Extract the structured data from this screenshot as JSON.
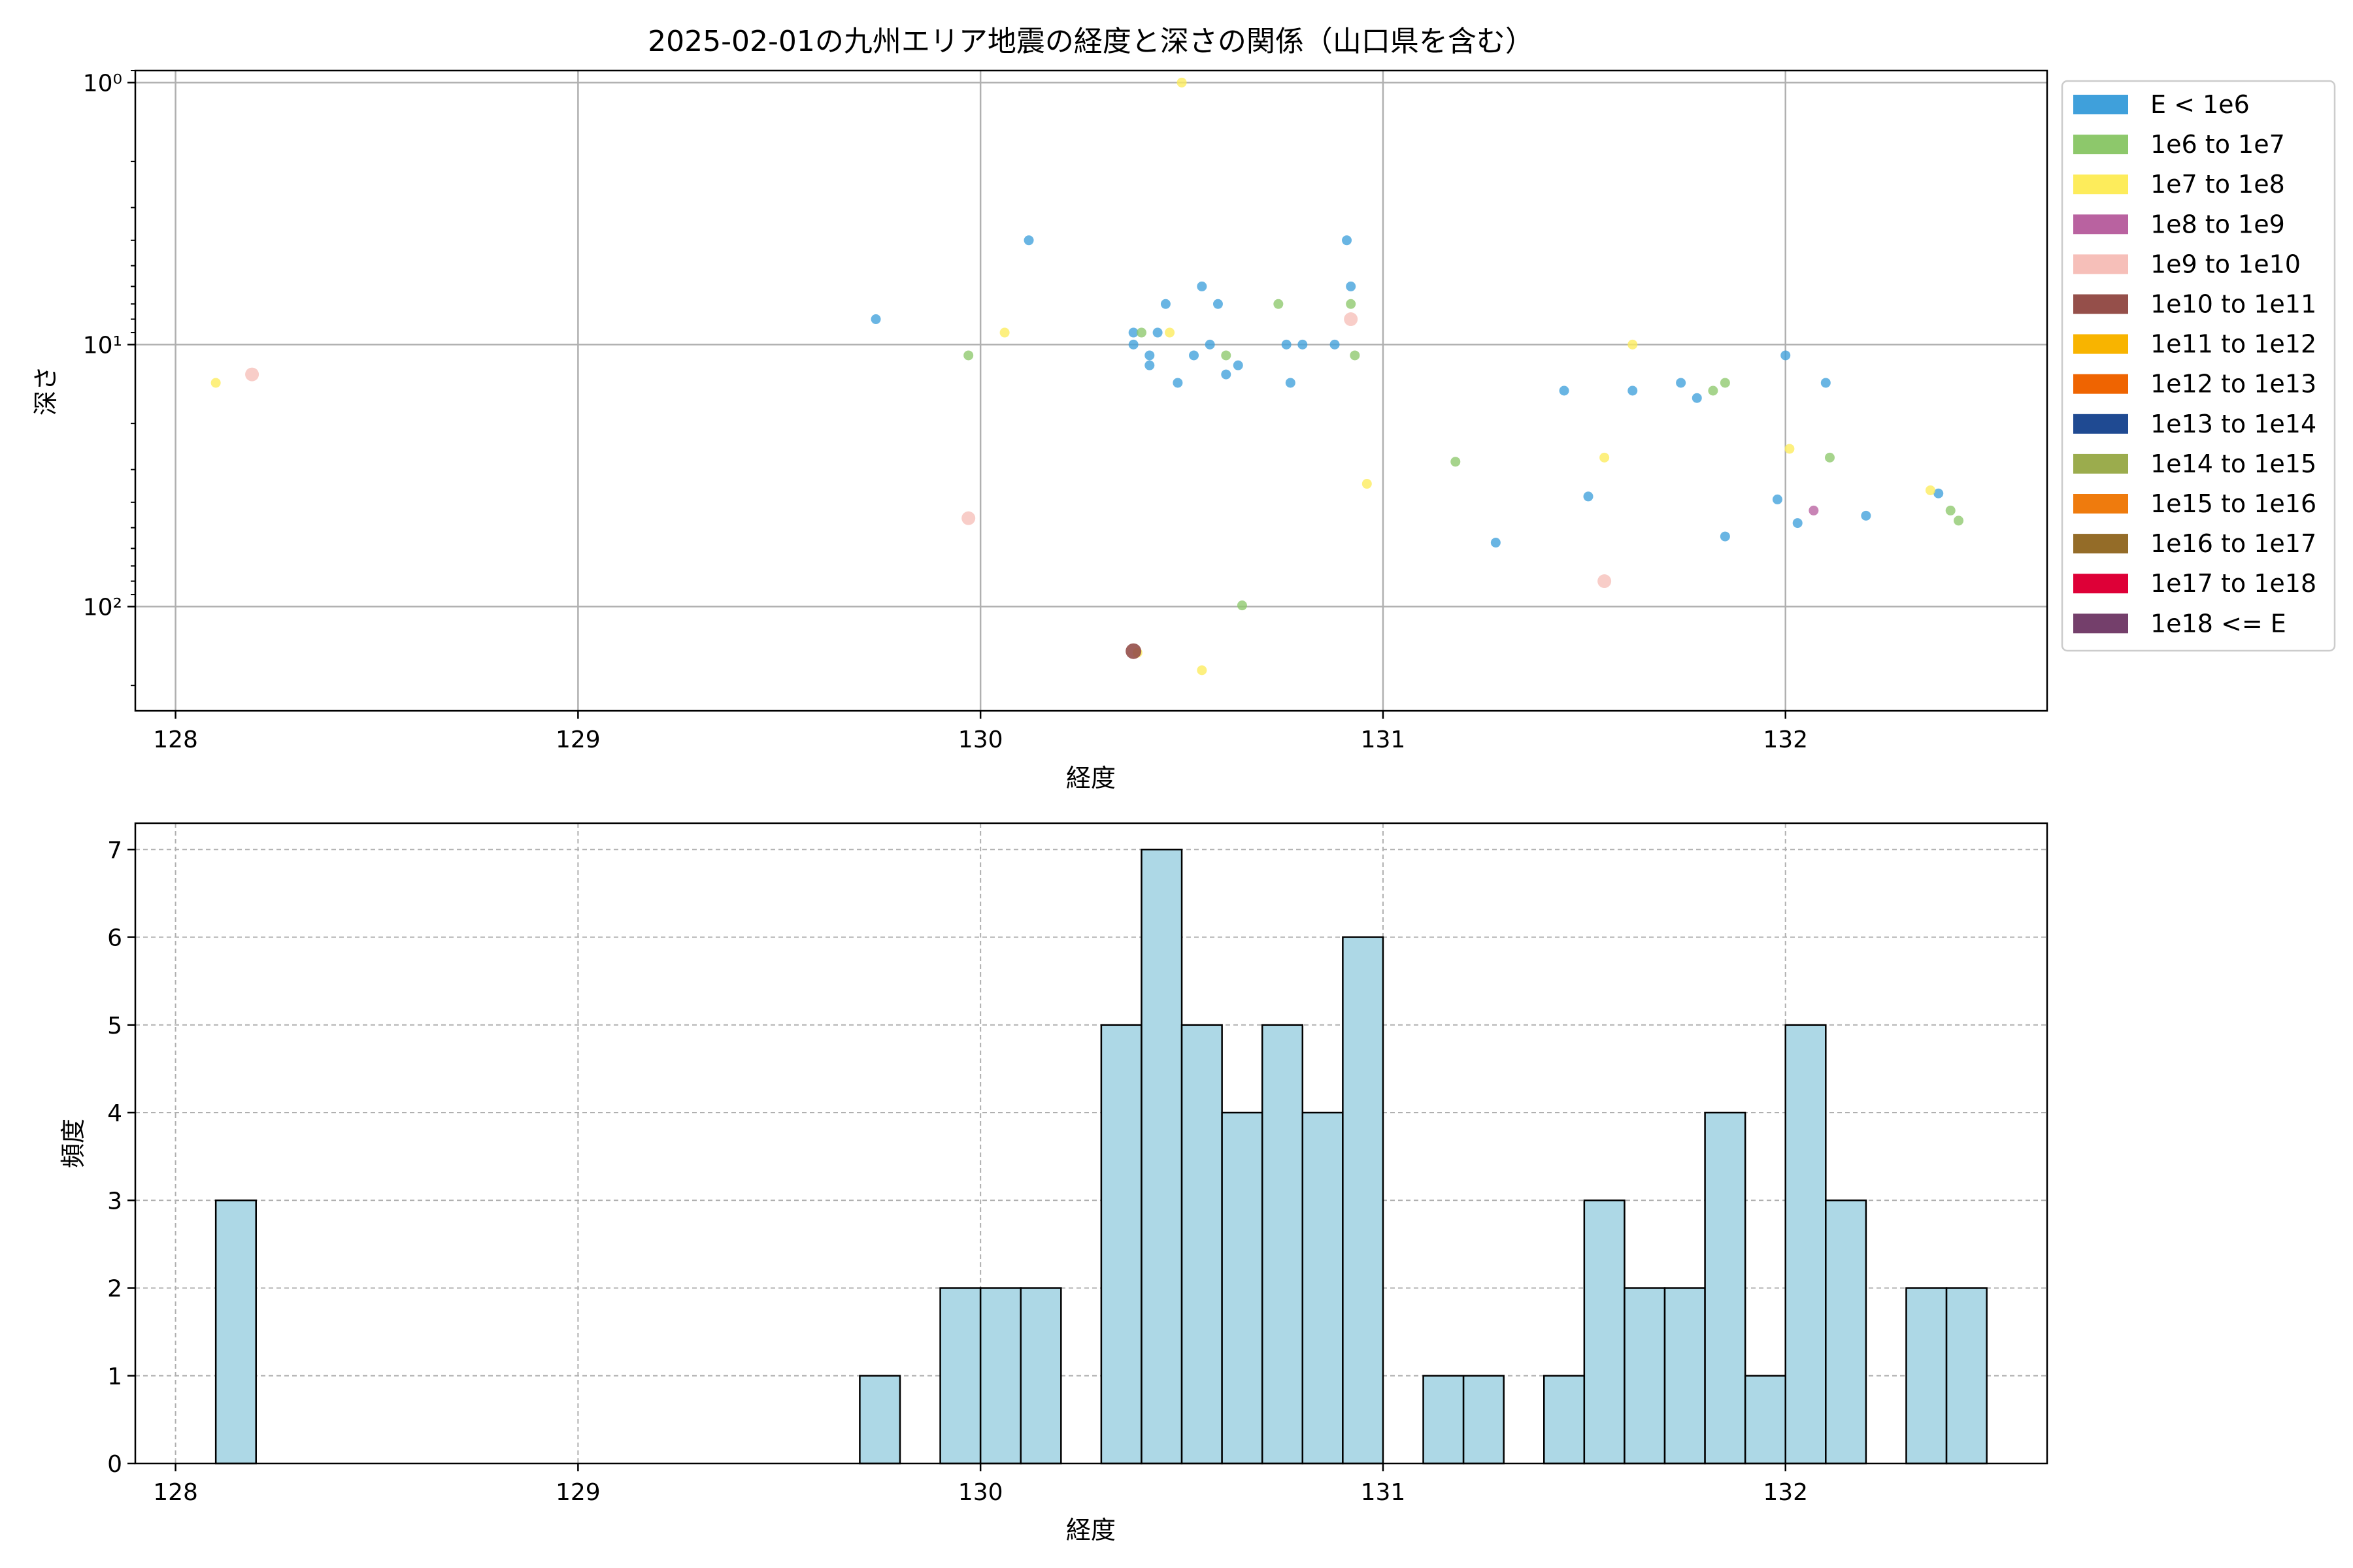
{
  "chart_data": [
    {
      "type": "scatter",
      "title": "2025-02-01の九州エリア地震の経度と深さの関係（山口県を含む）",
      "xlabel": "経度",
      "ylabel": "深さ",
      "xlim": [
        127.9,
        132.65
      ],
      "ylim": [
        250,
        0.9
      ],
      "y_scale": "log-inverted",
      "x_ticks": [
        128,
        129,
        130,
        131,
        132
      ],
      "x_tick_labels": [
        "128",
        "129",
        "130",
        "131",
        "132"
      ],
      "y_ticks": [
        1,
        10,
        100
      ],
      "y_tick_labels": [
        "10⁰",
        "10¹",
        "10²"
      ],
      "grid": true,
      "legend_position": "outside-right",
      "legend": [
        {
          "label": "E < 1e6",
          "color": "#3fa0db"
        },
        {
          "label": "1e6 to 1e7",
          "color": "#8dc86b"
        },
        {
          "label": "1e7 to 1e8",
          "color": "#fdec5b"
        },
        {
          "label": "1e8 to 1e9",
          "color": "#b962a0"
        },
        {
          "label": "1e9 to 1e10",
          "color": "#f6bfb9"
        },
        {
          "label": "1e10 to 1e11",
          "color": "#954f4a"
        },
        {
          "label": "1e11 to 1e12",
          "color": "#f8b400"
        },
        {
          "label": "1e12 to 1e13",
          "color": "#ef6401"
        },
        {
          "label": "1e13 to 1e14",
          "color": "#1f4a92"
        },
        {
          "label": "1e14 to 1e15",
          "color": "#9bac4d"
        },
        {
          "label": "1e15 to 1e16",
          "color": "#ef7b0d"
        },
        {
          "label": "1e16 to 1e17",
          "color": "#946c28"
        },
        {
          "label": "1e17 to 1e18",
          "color": "#de0037"
        },
        {
          "label": "1e18 <= E",
          "color": "#743f6b"
        }
      ],
      "series": [
        {
          "class": 0,
          "points": [
            [
              129.74,
              8
            ],
            [
              130.12,
              4
            ],
            [
              130.38,
              9
            ],
            [
              130.38,
              10
            ],
            [
              130.42,
              11
            ],
            [
              130.42,
              12
            ],
            [
              130.44,
              9
            ],
            [
              130.46,
              7
            ],
            [
              130.49,
              14
            ],
            [
              130.53,
              11
            ],
            [
              130.55,
              6
            ],
            [
              130.57,
              10
            ],
            [
              130.59,
              7
            ],
            [
              130.61,
              13
            ],
            [
              130.64,
              12
            ],
            [
              130.76,
              10
            ],
            [
              130.77,
              14
            ],
            [
              130.8,
              10
            ],
            [
              130.88,
              10
            ],
            [
              130.91,
              4
            ],
            [
              130.92,
              6
            ],
            [
              131.28,
              57
            ],
            [
              131.45,
              15
            ],
            [
              131.51,
              38
            ],
            [
              131.62,
              15
            ],
            [
              131.74,
              14
            ],
            [
              131.78,
              16
            ],
            [
              131.85,
              54
            ],
            [
              131.98,
              39
            ],
            [
              132.0,
              11
            ],
            [
              132.03,
              48
            ],
            [
              132.1,
              14
            ],
            [
              132.2,
              45
            ],
            [
              132.38,
              37
            ]
          ]
        },
        {
          "class": 1,
          "points": [
            [
              129.97,
              11
            ],
            [
              130.4,
              9
            ],
            [
              130.61,
              11
            ],
            [
              130.74,
              7
            ],
            [
              130.92,
              7
            ],
            [
              130.93,
              11
            ],
            [
              131.18,
              28
            ],
            [
              131.82,
              15
            ],
            [
              131.85,
              14
            ],
            [
              132.11,
              27
            ],
            [
              132.41,
              43
            ],
            [
              132.43,
              47
            ],
            [
              130.65,
              99
            ]
          ]
        },
        {
          "class": 2,
          "points": [
            [
              128.1,
              14
            ],
            [
              130.06,
              9
            ],
            [
              130.47,
              9
            ],
            [
              130.5,
              1.0
            ],
            [
              130.96,
              34
            ],
            [
              131.55,
              27
            ],
            [
              131.62,
              10
            ],
            [
              132.01,
              25
            ],
            [
              132.36,
              36
            ],
            [
              130.39,
              150
            ],
            [
              130.55,
              175
            ]
          ]
        },
        {
          "class": 3,
          "points": [
            [
              132.07,
              43
            ]
          ]
        },
        {
          "class": 4,
          "points": [
            [
              128.19,
              13
            ],
            [
              129.97,
              46
            ],
            [
              130.92,
              8
            ],
            [
              131.55,
              80
            ]
          ]
        },
        {
          "class": 5,
          "points": [
            [
              130.38,
              148
            ]
          ]
        }
      ]
    },
    {
      "type": "bar",
      "xlabel": "経度",
      "ylabel": "頻度",
      "xlim": [
        127.9,
        132.65
      ],
      "ylim": [
        0,
        7.3
      ],
      "x_ticks": [
        128,
        129,
        130,
        131,
        132
      ],
      "x_tick_labels": [
        "128",
        "129",
        "130",
        "131",
        "132"
      ],
      "y_ticks": [
        0,
        1,
        2,
        3,
        4,
        5,
        6,
        7
      ],
      "y_tick_labels": [
        "0",
        "1",
        "2",
        "3",
        "4",
        "5",
        "6",
        "7"
      ],
      "grid": true,
      "bar_color": "#add8e6",
      "bins": [
        {
          "start": 128.1,
          "end": 128.2,
          "count": 3
        },
        {
          "start": 129.7,
          "end": 129.8,
          "count": 1
        },
        {
          "start": 129.9,
          "end": 130.0,
          "count": 2
        },
        {
          "start": 130.0,
          "end": 130.1,
          "count": 2
        },
        {
          "start": 130.1,
          "end": 130.2,
          "count": 2
        },
        {
          "start": 130.3,
          "end": 130.4,
          "count": 5
        },
        {
          "start": 130.4,
          "end": 130.5,
          "count": 7
        },
        {
          "start": 130.5,
          "end": 130.6,
          "count": 5
        },
        {
          "start": 130.6,
          "end": 130.7,
          "count": 4
        },
        {
          "start": 130.7,
          "end": 130.8,
          "count": 5
        },
        {
          "start": 130.8,
          "end": 130.9,
          "count": 4
        },
        {
          "start": 130.9,
          "end": 131.0,
          "count": 6
        },
        {
          "start": 131.1,
          "end": 131.2,
          "count": 1
        },
        {
          "start": 131.2,
          "end": 131.3,
          "count": 1
        },
        {
          "start": 131.4,
          "end": 131.5,
          "count": 1
        },
        {
          "start": 131.5,
          "end": 131.6,
          "count": 3
        },
        {
          "start": 131.6,
          "end": 131.7,
          "count": 2
        },
        {
          "start": 131.7,
          "end": 131.8,
          "count": 2
        },
        {
          "start": 131.8,
          "end": 131.9,
          "count": 4
        },
        {
          "start": 131.9,
          "end": 132.0,
          "count": 1
        },
        {
          "start": 132.0,
          "end": 132.1,
          "count": 5
        },
        {
          "start": 132.1,
          "end": 132.2,
          "count": 3
        },
        {
          "start": 132.3,
          "end": 132.4,
          "count": 2
        },
        {
          "start": 132.4,
          "end": 132.5,
          "count": 2
        }
      ]
    }
  ]
}
